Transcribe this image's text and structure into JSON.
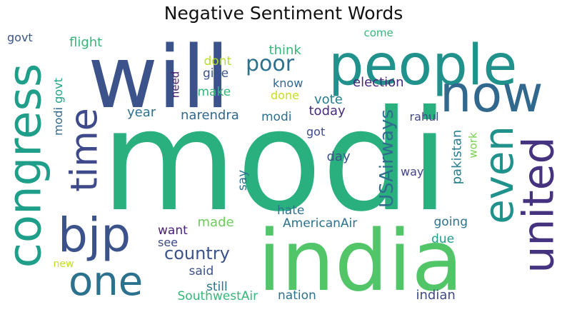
{
  "title": "Negative Sentiment Words",
  "words": [
    {
      "text": "modi",
      "color": "#2ab07f",
      "rotated": false
    },
    {
      "text": "india",
      "color": "#52c569",
      "rotated": false
    },
    {
      "text": "will",
      "color": "#3b528b",
      "rotated": false
    },
    {
      "text": "people",
      "color": "#21918c",
      "rotated": false
    },
    {
      "text": "now",
      "color": "#31688e",
      "rotated": false
    },
    {
      "text": "congress",
      "color": "#1f9e89",
      "rotated": true
    },
    {
      "text": "united",
      "color": "#46337f",
      "rotated": true
    },
    {
      "text": "even",
      "color": "#21918c",
      "rotated": true
    },
    {
      "text": "bjp",
      "color": "#3b528b",
      "rotated": false
    },
    {
      "text": "time",
      "color": "#3e4a89",
      "rotated": true
    },
    {
      "text": "one",
      "color": "#2c728e",
      "rotated": false
    },
    {
      "text": "poor",
      "color": "#2c728e",
      "rotated": false
    },
    {
      "text": "country",
      "color": "#3b528b",
      "rotated": false
    },
    {
      "text": "USAirways",
      "color": "#2f6c8e",
      "rotated": true
    },
    {
      "text": "election",
      "color": "#482878",
      "rotated": false
    },
    {
      "text": "AmericanAir",
      "color": "#2c728e",
      "rotated": false
    },
    {
      "text": "narendra",
      "color": "#31688e",
      "rotated": false
    },
    {
      "text": "modi",
      "color": "#2e6f8e",
      "rotated": false
    },
    {
      "text": "vote",
      "color": "#287d8e",
      "rotated": false
    },
    {
      "text": "today",
      "color": "#472d7b",
      "rotated": false
    },
    {
      "text": "rahul",
      "color": "#3e4a89",
      "rotated": false
    },
    {
      "text": "pakistan",
      "color": "#287d8e",
      "rotated": true
    },
    {
      "text": "work",
      "color": "#7ad151",
      "rotated": true
    },
    {
      "text": "flight",
      "color": "#35b779",
      "rotated": false
    },
    {
      "text": "govt",
      "color": "#3b528b",
      "rotated": false
    },
    {
      "text": "govt",
      "color": "#20a486",
      "rotated": true
    },
    {
      "text": "modi",
      "color": "#31688e",
      "rotated": true
    },
    {
      "text": "dont",
      "color": "#b5de2b",
      "rotated": false
    },
    {
      "text": "give",
      "color": "#3b528b",
      "rotated": false
    },
    {
      "text": "make",
      "color": "#35b779",
      "rotated": false
    },
    {
      "text": "need",
      "color": "#481f70",
      "rotated": true
    },
    {
      "text": "think",
      "color": "#35b779",
      "rotated": false
    },
    {
      "text": "come",
      "color": "#35b779",
      "rotated": false
    },
    {
      "text": "know",
      "color": "#31688e",
      "rotated": false
    },
    {
      "text": "done",
      "color": "#c2df23",
      "rotated": false
    },
    {
      "text": "year",
      "color": "#2c728e",
      "rotated": false
    },
    {
      "text": "got",
      "color": "#3e4a89",
      "rotated": false
    },
    {
      "text": "day",
      "color": "#3b528b",
      "rotated": false
    },
    {
      "text": "way",
      "color": "#414487",
      "rotated": false
    },
    {
      "text": "say",
      "color": "#2c728e",
      "rotated": true
    },
    {
      "text": "want",
      "color": "#482173",
      "rotated": false
    },
    {
      "text": "made",
      "color": "#6ccd5a",
      "rotated": false
    },
    {
      "text": "hate",
      "color": "#2c728e",
      "rotated": false
    },
    {
      "text": "see",
      "color": "#3e4a89",
      "rotated": false
    },
    {
      "text": "going",
      "color": "#2c728e",
      "rotated": false
    },
    {
      "text": "due",
      "color": "#1f9e89",
      "rotated": false
    },
    {
      "text": "said",
      "color": "#3b528b",
      "rotated": false
    },
    {
      "text": "still",
      "color": "#2c728e",
      "rotated": false
    },
    {
      "text": "new",
      "color": "#c2df23",
      "rotated": false
    },
    {
      "text": "SouthwestAir",
      "color": "#35b779",
      "rotated": false
    },
    {
      "text": "nation",
      "color": "#2c728e",
      "rotated": false
    },
    {
      "text": "indian",
      "color": "#3e4a89",
      "rotated": false
    }
  ]
}
